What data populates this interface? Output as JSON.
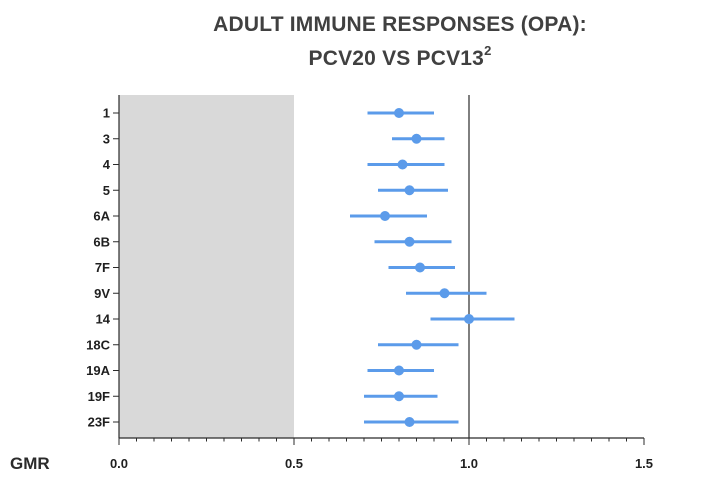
{
  "title_line1": "ADULT IMMUNE RESPONSES (OPA):",
  "title_line2": "PCV20 VS PCV13",
  "title_superscript": "2",
  "colors": {
    "marker": "#5b9bea",
    "shade": "#d9d9d9",
    "axis": "#2b2b2b",
    "text": "#404040"
  },
  "chart_data": {
    "type": "forest",
    "xlabel": "GMR",
    "xlim": [
      0.0,
      1.5
    ],
    "xticks": [
      "0.0",
      "0.5",
      "1.0",
      "1.5"
    ],
    "reference_line": 1.0,
    "shaded_region": [
      0.0,
      0.5
    ],
    "categories": [
      "1",
      "3",
      "4",
      "5",
      "6A",
      "6B",
      "7F",
      "9V",
      "14",
      "18C",
      "19A",
      "19F",
      "23F"
    ],
    "estimates": [
      0.8,
      0.85,
      0.81,
      0.83,
      0.76,
      0.83,
      0.86,
      0.93,
      1.0,
      0.85,
      0.8,
      0.8,
      0.83
    ],
    "ci_lower": [
      0.71,
      0.78,
      0.71,
      0.74,
      0.66,
      0.73,
      0.77,
      0.82,
      0.89,
      0.74,
      0.71,
      0.7,
      0.7
    ],
    "ci_upper": [
      0.9,
      0.93,
      0.93,
      0.94,
      0.88,
      0.95,
      0.96,
      1.05,
      1.13,
      0.97,
      0.9,
      0.91,
      0.97
    ]
  }
}
